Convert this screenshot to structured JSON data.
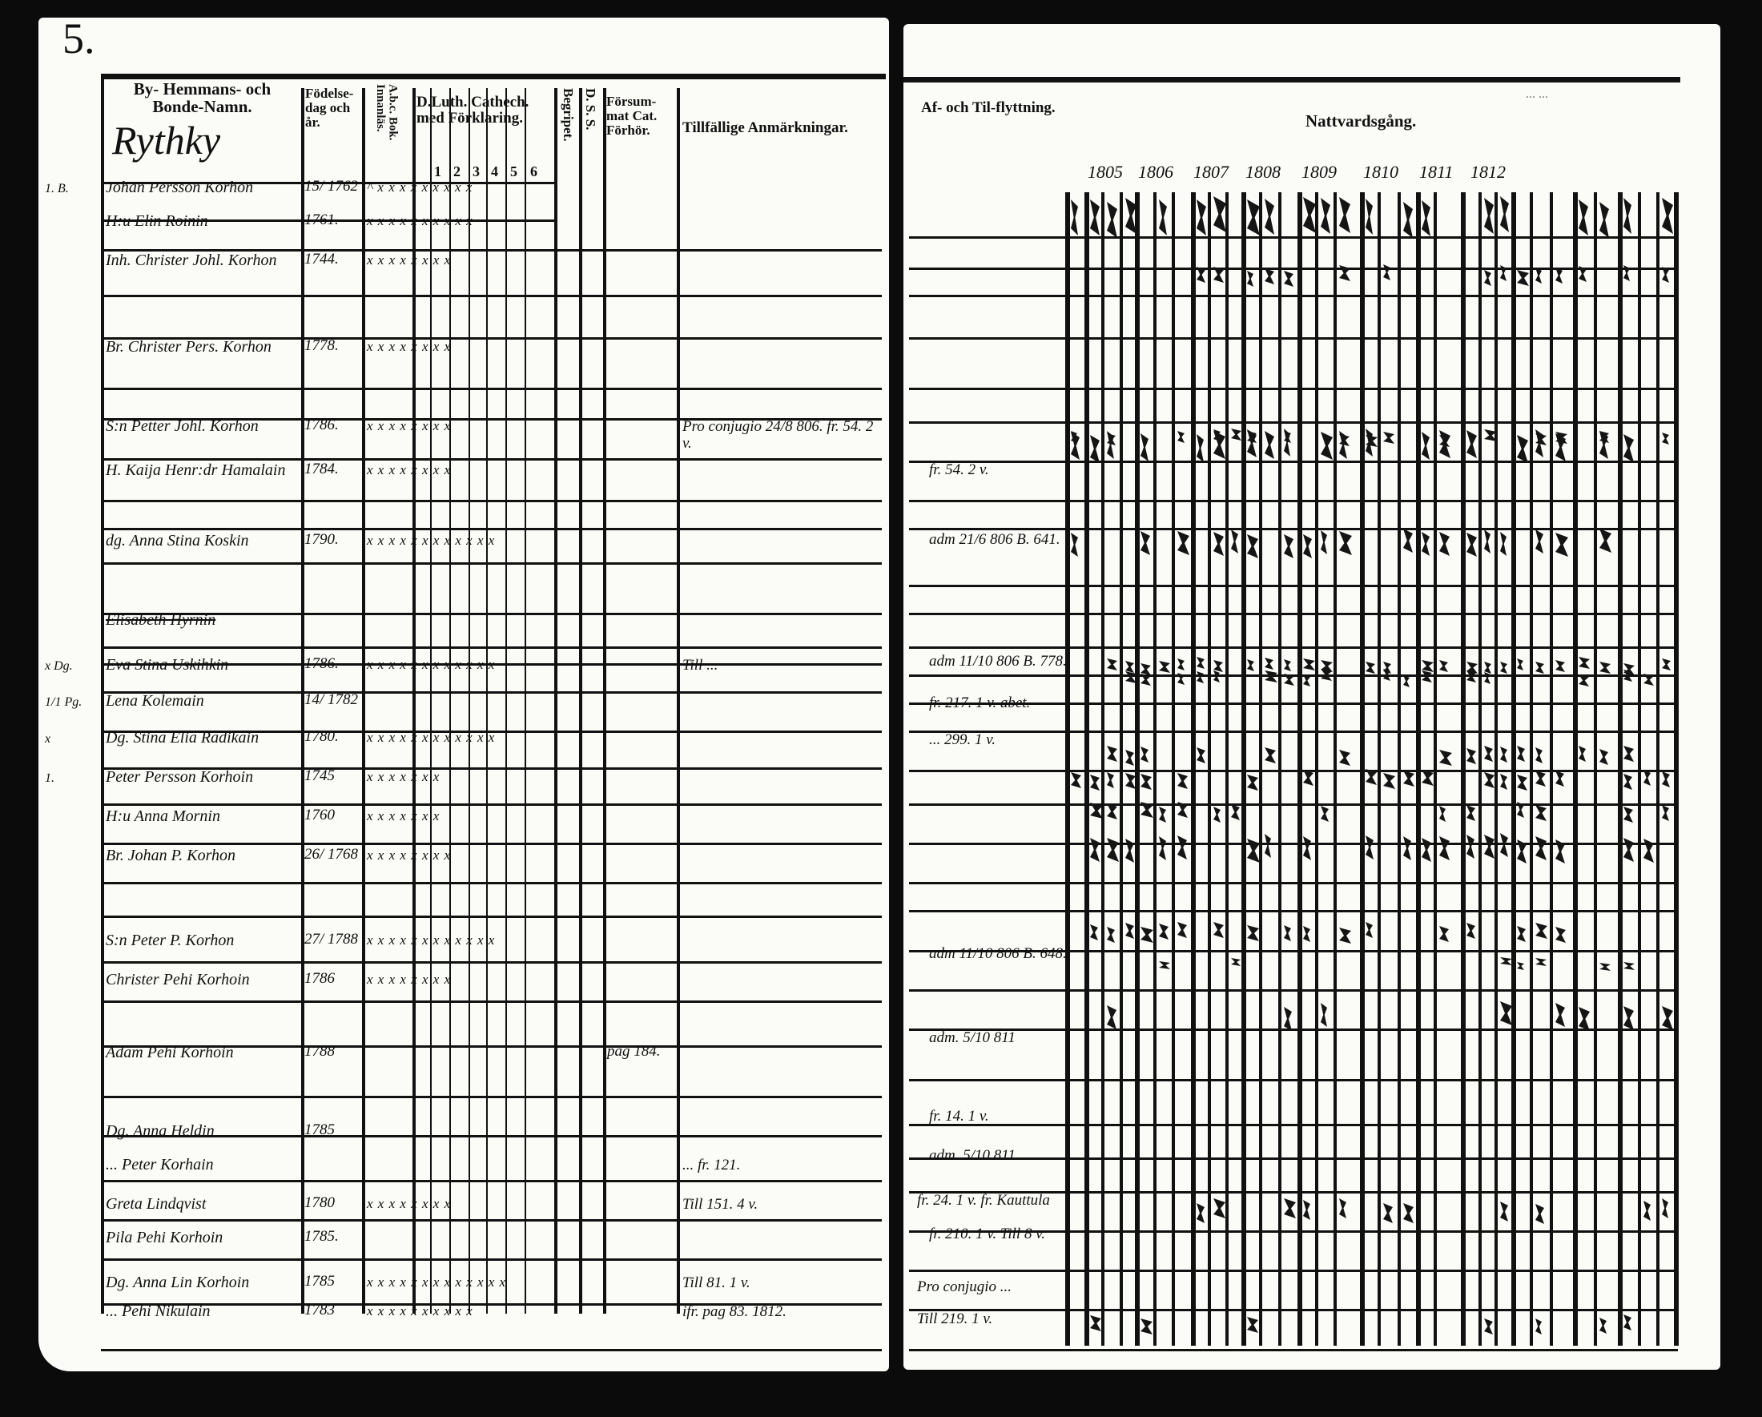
{
  "page_number": "5.",
  "left_page": {
    "headers": {
      "name": "By- Hemmans- och Bonde-Namn.",
      "birth": "Födelse-dag och år.",
      "abc": "A.b.c. Bok. Innanläs.",
      "catechism": "D.Luth. Cathech. med Förklaring.",
      "catechism_cols": [
        "1",
        "2",
        "3",
        "4",
        "5",
        "6"
      ],
      "begripet": "Begripet.",
      "ds": "D. S. S.",
      "forsummat": "Försum-mat Cat. Förhör.",
      "remarks": "Tillfällige Anmärkningar."
    },
    "village": "Rythky",
    "entries": [
      {
        "margin": "1. B.",
        "name": "Johan Persson Korhon",
        "birth": "15/ 1762",
        "marks": "^ x x x x x x x x x",
        "remark": ""
      },
      {
        "margin": "",
        "name": "H:u Elin Roinin",
        "birth": "1761.",
        "marks": "x x x x x x x x x x",
        "remark": ""
      },
      {
        "margin": "",
        "name": "Inh. Christer Johl. Korhon",
        "birth": "1744.",
        "marks": "x x x x x x x x",
        "remark": ""
      },
      {
        "margin": "",
        "name": "Br. Christer Pers. Korhon",
        "birth": "1778.",
        "marks": "x x x x x x x x",
        "remark": ""
      },
      {
        "margin": "",
        "name": "S:n Petter Johl. Korhon",
        "birth": "1786.",
        "marks": "x x x x x x x x",
        "remark": "Pro conjugio 24/8 806. fr. 54. 2 v."
      },
      {
        "margin": "",
        "name": "H. Kaija Henr:dr Hamalain",
        "birth": "1784.",
        "marks": "x x x x x x x x",
        "remark": ""
      },
      {
        "margin": "",
        "name": "dg. Anna Stina Koskin",
        "birth": "1790.",
        "marks": "x x x x x x x x x x x x",
        "remark": ""
      },
      {
        "margin": "",
        "name": "Elisabeth Hyrnin",
        "birth": "",
        "marks": "",
        "remark": ""
      },
      {
        "margin": "x Dg.",
        "name": "Eva Stina Uskihkin",
        "birth": "1786.",
        "marks": "x x x x x x x x x x x x",
        "remark": "Till ..."
      },
      {
        "margin": "1/1 Pg.",
        "name": "Lena Kolemain",
        "birth": "14/ 1782",
        "marks": "",
        "remark": ""
      },
      {
        "margin": "x",
        "name": "Dg. Stina Elia Radikain",
        "birth": "1780.",
        "marks": "x x x x x x x x x x x x",
        "remark": ""
      },
      {
        "margin": "1.",
        "name": "Peter Persson Korhoin",
        "birth": "1745",
        "marks": "x x x x x x x",
        "remark": ""
      },
      {
        "margin": "",
        "name": "H:u Anna Mornin",
        "birth": "1760",
        "marks": "x x x x x x x",
        "remark": ""
      },
      {
        "margin": "",
        "name": "Br. Johan P. Korhon",
        "birth": "26/ 1768",
        "marks": "x x x x x x x x",
        "remark": ""
      },
      {
        "margin": "",
        "name": "S:n Peter P. Korhon",
        "birth": "27/ 1788",
        "marks": "x x x x x x x x x x x x",
        "remark": ""
      },
      {
        "margin": "",
        "name": "Christer Pehi Korhoin",
        "birth": "1786",
        "marks": "x x x x x x x x",
        "remark": ""
      },
      {
        "margin": "",
        "name": "Adam Pehi Korhoin",
        "birth": "1788",
        "marks": "",
        "remark": "",
        "forsummat": "pag 184."
      },
      {
        "margin": "",
        "name": "Dg. Anna Heldin",
        "birth": "1785",
        "marks": "",
        "remark": ""
      },
      {
        "margin": "",
        "name": "... Peter Korhain",
        "birth": "",
        "marks": "",
        "remark": "... fr. 121."
      },
      {
        "margin": "",
        "name": "Greta Lindqvist",
        "birth": "1780",
        "marks": "x x x x x x x x",
        "remark": "Till 151. 4 v."
      },
      {
        "margin": "",
        "name": "Pila Pehi Korhoin",
        "birth": "1785.",
        "marks": "",
        "remark": ""
      },
      {
        "margin": "",
        "name": "Dg. Anna Lin Korhoin",
        "birth": "1785",
        "marks": "x x x x x x x x x x x x x",
        "remark": "Till 81. 1 v."
      },
      {
        "margin": "",
        "name": "... Pehi Nikulain",
        "birth": "1783",
        "marks": "x x x x x x x x x x",
        "remark": "ifr. pag 83. 1812."
      }
    ]
  },
  "right_page": {
    "headers": {
      "moving": "Af- och Til-flyttning.",
      "communion": "Nattvardsgång.",
      "faint_note": "... ..."
    },
    "years": [
      "1805",
      "1806",
      "1807",
      "1808",
      "1809",
      "1810",
      "1811",
      "1812"
    ],
    "moving_notes": [
      "fr. 54. 2 v.",
      "adm 21/6 806 B. 641.",
      "adm 11/10 806 B. 778.",
      "fr. 217. 1 v. abet.",
      "... 299. 1 v.",
      "adm 11/10 806 B. 648.",
      "adm. 5/10 811",
      "fr. 14. 1 v.",
      "adm. 5/10 811",
      "fr. 24. 1 v. fr. Kauttula",
      "fr. 210. 1 v. Till 8 v.",
      "Pro conjugio ...",
      "Till 219. 1 v."
    ]
  }
}
